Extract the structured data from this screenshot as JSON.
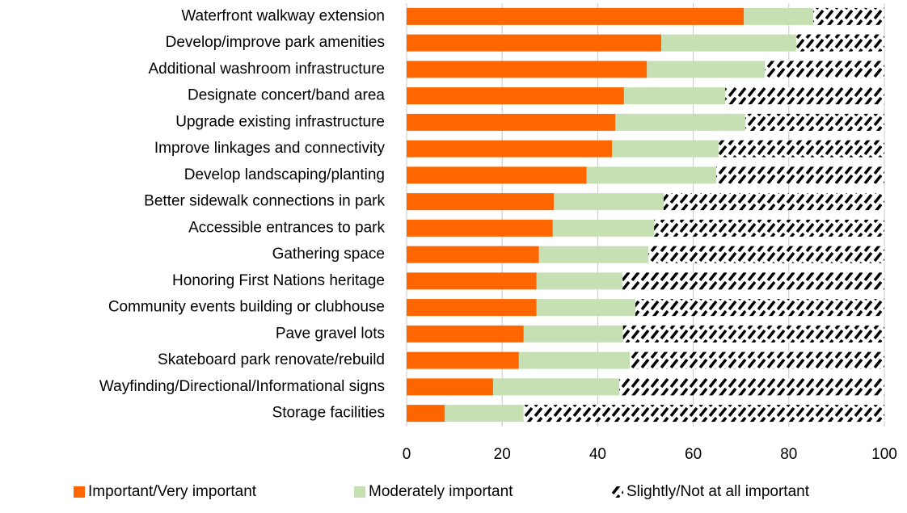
{
  "chart_data": {
    "type": "stacked-bar-horizontal",
    "categories": [
      "Waterfront walkway extension",
      "Develop/improve park amenities",
      "Additional washroom infrastructure",
      "Designate concert/band area",
      "Upgrade existing infrastructure",
      "Improve linkages and connectivity",
      "Develop landscaping/planting",
      "Better sidewalk connections in park",
      "Accessible entrances to park",
      "Gathering space",
      "Honoring First Nations heritage",
      "Community events building or clubhouse",
      "Pave gravel lots",
      "Skateboard park renovate/rebuild",
      "Wayfinding/Directional/Informational signs",
      "Storage facilities"
    ],
    "series": [
      {
        "name": "Important/Very important",
        "color": "#FF6600",
        "values": [
          70.6,
          53.3,
          50.3,
          45.5,
          43.7,
          43.0,
          37.7,
          30.8,
          30.6,
          27.7,
          27.2,
          27.2,
          24.5,
          23.5,
          18.1,
          8.0
        ]
      },
      {
        "name": "Moderately important",
        "color": "#C6E0B4",
        "values": [
          14.5,
          28.3,
          24.7,
          21.2,
          27.2,
          22.3,
          27.1,
          23.0,
          21.2,
          22.9,
          18.0,
          20.7,
          20.8,
          23.2,
          26.4,
          16.5
        ]
      },
      {
        "name": "Slightly/Not at all important",
        "color": "#000000",
        "fill_pattern": "diagonal-hatch",
        "values": [
          14.9,
          18.4,
          25.0,
          33.3,
          29.1,
          34.7,
          35.2,
          46.2,
          48.2,
          49.4,
          54.8,
          52.1,
          54.7,
          53.3,
          55.5,
          75.5
        ]
      }
    ],
    "xlim": [
      0,
      100
    ],
    "xticks": [
      0,
      20,
      40,
      60,
      80,
      100
    ],
    "grid": true,
    "legend_position": "bottom"
  }
}
